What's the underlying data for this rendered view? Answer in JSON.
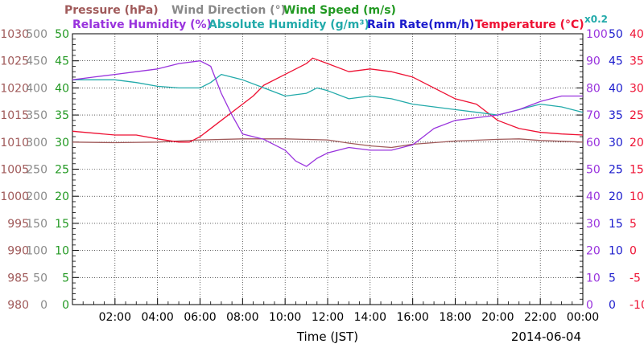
{
  "chart_data": {
    "type": "line",
    "x_label": "Time (JST)",
    "date_label": "2014-06-04",
    "x_ticks": [
      "02:00",
      "04:00",
      "06:00",
      "08:00",
      "10:00",
      "12:00",
      "14:00",
      "16:00",
      "18:00",
      "20:00",
      "22:00",
      "00:00"
    ],
    "x_range_hours": [
      0,
      24
    ],
    "legend_row1": [
      {
        "name": "Pressure (hPa)",
        "color": "#a05a5a"
      },
      {
        "name": "Wind Direction (°)",
        "color": "#8a8a8a"
      },
      {
        "name": "Wind Speed (m/s)",
        "color": "#229922"
      }
    ],
    "legend_row2": [
      {
        "name": "Relative Humidity (%)",
        "color": "#9933dd"
      },
      {
        "name": "Absolute Humidity (g/m³)",
        "color": "#22aaaa"
      },
      {
        "name": "Rain Rate(mm/h)",
        "color": "#1a1acc"
      },
      {
        "name": "Temperature (°C)",
        "color": "#ee1133"
      }
    ],
    "x0_2_label": "x0.2",
    "axes": {
      "pressure": {
        "color": "#a05a5a",
        "range": [
          980,
          1030
        ],
        "ticks": [
          "980",
          "985",
          "990",
          "995",
          "1000",
          "1005",
          "1010",
          "1015",
          "1020",
          "1025",
          "1030"
        ]
      },
      "wind_direction": {
        "color": "#8a8a8a",
        "range": [
          0,
          500
        ],
        "ticks": [
          "0",
          "50",
          "100",
          "150",
          "200",
          "250",
          "300",
          "350",
          "400",
          "450",
          "500"
        ]
      },
      "wind_speed": {
        "color": "#229922",
        "range": [
          0,
          50
        ],
        "ticks": [
          "0",
          "5",
          "10",
          "15",
          "20",
          "25",
          "30",
          "35",
          "40",
          "45",
          "50"
        ]
      },
      "relative_humidity": {
        "color": "#9933dd",
        "range": [
          0,
          100
        ],
        "ticks": [
          "0",
          "10",
          "20",
          "30",
          "40",
          "50",
          "60",
          "70",
          "80",
          "90",
          "100"
        ]
      },
      "rain_rate": {
        "color": "#1a1acc",
        "range": [
          0,
          50
        ],
        "ticks": [
          "0",
          "5",
          "10",
          "15",
          "20",
          "25",
          "30",
          "35",
          "40",
          "45",
          "50"
        ]
      },
      "temperature": {
        "color": "#ee1133",
        "range": [
          -10,
          40
        ],
        "ticks": [
          "-10",
          "-5",
          "0",
          "5",
          "10",
          "15",
          "20",
          "25",
          "30",
          "35",
          "40"
        ]
      }
    },
    "series": [
      {
        "name": "Pressure",
        "axis": "pressure",
        "color": "#a05a5a",
        "points": [
          [
            0,
            1010
          ],
          [
            2,
            1009.9
          ],
          [
            4,
            1010
          ],
          [
            6,
            1010.4
          ],
          [
            8,
            1010.6
          ],
          [
            10,
            1010.6
          ],
          [
            12,
            1010.4
          ],
          [
            13,
            1009.8
          ],
          [
            14,
            1009.3
          ],
          [
            15,
            1009
          ],
          [
            16,
            1009.6
          ],
          [
            18,
            1010.2
          ],
          [
            20,
            1010.5
          ],
          [
            21,
            1010.6
          ],
          [
            22,
            1010.3
          ],
          [
            24,
            1010
          ]
        ]
      },
      {
        "name": "Temperature",
        "axis": "temperature",
        "color": "#ee1133",
        "points": [
          [
            0,
            22
          ],
          [
            2,
            21.3
          ],
          [
            3,
            21.3
          ],
          [
            4,
            20.6
          ],
          [
            5,
            20
          ],
          [
            5.5,
            20
          ],
          [
            6,
            21
          ],
          [
            7,
            24
          ],
          [
            8,
            27
          ],
          [
            8.5,
            28.5
          ],
          [
            9,
            30.5
          ],
          [
            10,
            32.5
          ],
          [
            11,
            34.5
          ],
          [
            11.3,
            35.5
          ],
          [
            12,
            34.5
          ],
          [
            13,
            33
          ],
          [
            14,
            33.5
          ],
          [
            15,
            33
          ],
          [
            16,
            32
          ],
          [
            17,
            30
          ],
          [
            18,
            28
          ],
          [
            19,
            27
          ],
          [
            20,
            24
          ],
          [
            21,
            22.5
          ],
          [
            22,
            21.8
          ],
          [
            23,
            21.5
          ],
          [
            24,
            21.3
          ]
        ]
      },
      {
        "name": "Absolute Humidity",
        "axis": "rain_rate",
        "color": "#22aaaa",
        "points": [
          [
            0,
            41.5
          ],
          [
            2,
            41.5
          ],
          [
            3,
            41
          ],
          [
            4,
            40.3
          ],
          [
            5,
            40
          ],
          [
            6,
            40
          ],
          [
            6.5,
            41
          ],
          [
            7,
            42.5
          ],
          [
            8,
            41.5
          ],
          [
            9,
            40
          ],
          [
            10,
            38.5
          ],
          [
            11,
            39
          ],
          [
            11.5,
            40
          ],
          [
            12,
            39.5
          ],
          [
            13,
            38
          ],
          [
            14,
            38.5
          ],
          [
            15,
            38
          ],
          [
            16,
            37
          ],
          [
            17,
            36.5
          ],
          [
            18,
            36
          ],
          [
            19,
            35.5
          ],
          [
            20,
            35
          ],
          [
            21,
            36
          ],
          [
            22,
            37
          ],
          [
            23,
            36.5
          ],
          [
            24,
            35.5
          ]
        ]
      },
      {
        "name": "Relative Humidity",
        "axis": "relative_humidity",
        "color": "#9933dd",
        "points": [
          [
            0,
            83
          ],
          [
            1,
            84
          ],
          [
            2,
            85
          ],
          [
            3,
            86
          ],
          [
            4,
            87
          ],
          [
            5,
            89
          ],
          [
            6,
            90
          ],
          [
            6.5,
            88
          ],
          [
            7,
            78
          ],
          [
            7.5,
            70
          ],
          [
            8,
            63
          ],
          [
            9,
            61
          ],
          [
            10,
            57
          ],
          [
            10.5,
            53
          ],
          [
            11,
            51
          ],
          [
            11.5,
            54
          ],
          [
            12,
            56
          ],
          [
            13,
            58
          ],
          [
            14,
            57
          ],
          [
            15,
            57
          ],
          [
            16,
            59
          ],
          [
            16.5,
            62
          ],
          [
            17,
            65
          ],
          [
            18,
            68
          ],
          [
            19,
            69
          ],
          [
            20,
            70
          ],
          [
            21,
            72
          ],
          [
            22,
            75
          ],
          [
            23,
            77
          ],
          [
            24,
            77
          ]
        ]
      }
    ]
  }
}
